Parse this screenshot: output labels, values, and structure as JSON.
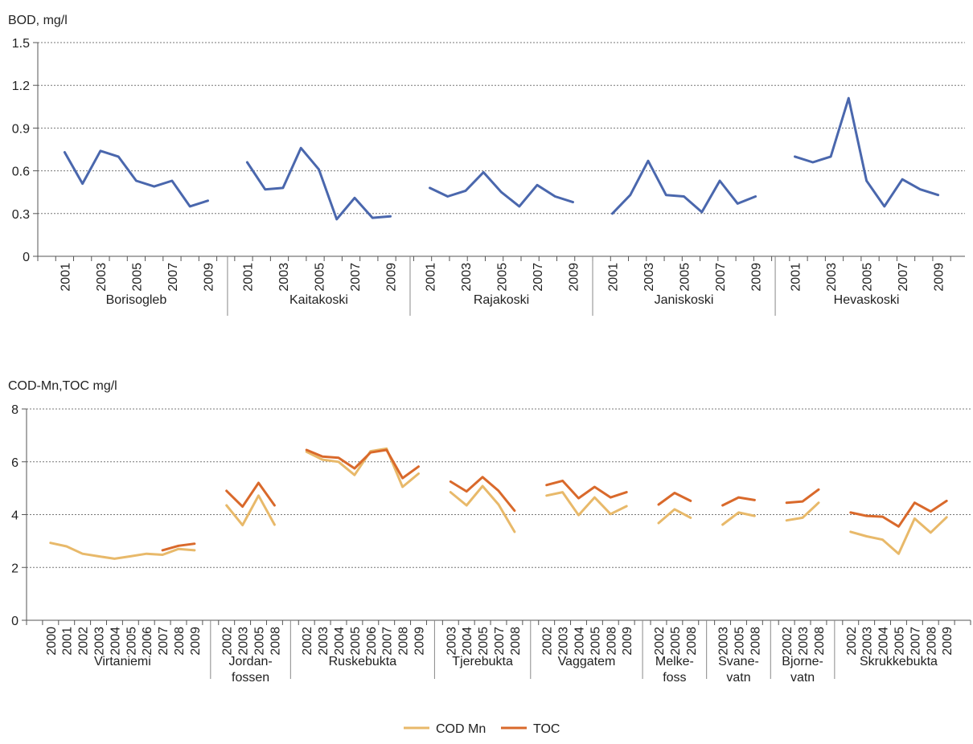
{
  "chart_data": [
    {
      "type": "line",
      "title": "",
      "ylabel": "BOD, mg/l",
      "ylim": [
        0,
        1.5
      ],
      "yticks": [
        "0",
        "0.3",
        "0.6",
        "0.9",
        "1.2",
        "1.5"
      ],
      "grid": true,
      "groups": [
        {
          "name": "Borisogleb",
          "tick_labels": [
            "2001",
            "",
            "2003",
            "",
            "2005",
            "",
            "2007",
            "",
            "2009"
          ],
          "series": [
            {
              "values": [
                0.73,
                0.51,
                0.74,
                0.7,
                0.53,
                0.49,
                0.53,
                0.35,
                0.39
              ]
            }
          ]
        },
        {
          "name": "Kaitakoski",
          "tick_labels": [
            "2001",
            "",
            "2003",
            "",
            "2005",
            "",
            "2007",
            "",
            "2009"
          ],
          "series": [
            {
              "values": [
                0.66,
                0.47,
                0.48,
                0.76,
                0.61,
                0.26,
                0.41,
                0.27,
                0.28
              ]
            }
          ]
        },
        {
          "name": "Rajakoski",
          "tick_labels": [
            "2001",
            "",
            "2003",
            "",
            "2005",
            "",
            "2007",
            "",
            "2009"
          ],
          "series": [
            {
              "values": [
                0.48,
                0.42,
                0.46,
                0.59,
                0.45,
                0.35,
                0.5,
                0.42,
                0.38
              ]
            }
          ]
        },
        {
          "name": "Janiskoski",
          "tick_labels": [
            "2001",
            "",
            "2003",
            "",
            "2005",
            "",
            "2007",
            "",
            "2009"
          ],
          "series": [
            {
              "values": [
                0.3,
                0.43,
                0.67,
                0.43,
                0.42,
                0.31,
                0.53,
                0.37,
                0.42
              ]
            }
          ]
        },
        {
          "name": "Hevaskoski",
          "tick_labels": [
            "2001",
            "",
            "2003",
            "",
            "2005",
            "",
            "2007",
            "",
            "2009"
          ],
          "series": [
            {
              "values": [
                0.7,
                0.66,
                0.7,
                1.11,
                0.53,
                0.35,
                0.54,
                0.47,
                0.43
              ]
            }
          ]
        }
      ]
    },
    {
      "type": "line",
      "title": "",
      "ylabel": "COD-Mn,TOC mg/l",
      "ylim": [
        0,
        8
      ],
      "yticks": [
        "0",
        "2",
        "4",
        "6",
        "8"
      ],
      "grid": true,
      "legend": {
        "position": "bottom",
        "items": [
          {
            "name": "COD Mn",
            "color": "#e8b96a"
          },
          {
            "name": "TOC",
            "color": "#d9692b"
          }
        ]
      },
      "groups": [
        {
          "name": "Virtaniemi",
          "tick_labels": [
            "2000",
            "2001",
            "2002",
            "2003",
            "2004",
            "2005",
            "2006",
            "2007",
            "2008",
            "2009"
          ],
          "series": [
            {
              "name": "COD Mn",
              "values": [
                2.93,
                2.8,
                2.52,
                2.42,
                2.33,
                2.42,
                2.52,
                2.48,
                2.7,
                2.65
              ]
            },
            {
              "name": "TOC",
              "values": [
                null,
                null,
                null,
                null,
                null,
                null,
                null,
                2.65,
                2.82,
                2.9
              ]
            }
          ]
        },
        {
          "name": "Jordan-\nfossen",
          "tick_labels": [
            "2002",
            "2003",
            "2005",
            "2008"
          ],
          "series": [
            {
              "name": "COD Mn",
              "values": [
                4.35,
                3.6,
                4.72,
                3.62
              ]
            },
            {
              "name": "TOC",
              "values": [
                4.9,
                4.3,
                5.2,
                4.35
              ]
            }
          ]
        },
        {
          "name": "Ruskebukta",
          "tick_labels": [
            "2002",
            "2003",
            "2004",
            "2005",
            "2006",
            "2007",
            "2008",
            "2009"
          ],
          "series": [
            {
              "name": "COD Mn",
              "values": [
                6.38,
                6.08,
                6.0,
                5.5,
                6.4,
                6.5,
                5.05,
                5.55
              ]
            },
            {
              "name": "TOC",
              "values": [
                6.45,
                6.2,
                6.15,
                5.75,
                6.35,
                6.45,
                5.38,
                5.82
              ]
            }
          ]
        },
        {
          "name": "Tjerebukta",
          "tick_labels": [
            "2003",
            "2004",
            "2005",
            "2007",
            "2008"
          ],
          "series": [
            {
              "name": "COD Mn",
              "values": [
                4.85,
                4.35,
                5.08,
                4.38,
                3.35
              ]
            },
            {
              "name": "TOC",
              "values": [
                5.25,
                4.88,
                5.42,
                4.9,
                4.15
              ]
            }
          ]
        },
        {
          "name": "Vaggatem",
          "tick_labels": [
            "2002",
            "2003",
            "2004",
            "2005",
            "2008",
            "2009"
          ],
          "series": [
            {
              "name": "COD Mn",
              "values": [
                4.72,
                4.85,
                3.98,
                4.65,
                4.02,
                4.32
              ]
            },
            {
              "name": "TOC",
              "values": [
                5.12,
                5.28,
                4.62,
                5.05,
                4.65,
                4.85
              ]
            }
          ]
        },
        {
          "name": "Melke-\nfoss",
          "tick_labels": [
            "2002",
            "2005",
            "2008"
          ],
          "series": [
            {
              "name": "COD Mn",
              "values": [
                3.68,
                4.2,
                3.88
              ]
            },
            {
              "name": "TOC",
              "values": [
                4.38,
                4.82,
                4.52
              ]
            }
          ]
        },
        {
          "name": "Svane-\nvatn",
          "tick_labels": [
            "2003",
            "2005",
            "2008"
          ],
          "series": [
            {
              "name": "COD Mn",
              "values": [
                3.62,
                4.08,
                3.95
              ]
            },
            {
              "name": "TOC",
              "values": [
                4.35,
                4.65,
                4.55
              ]
            }
          ]
        },
        {
          "name": "Bjorne-\nvatn",
          "tick_labels": [
            "2002",
            "2003",
            "2008"
          ],
          "series": [
            {
              "name": "COD Mn",
              "values": [
                3.78,
                3.88,
                4.45
              ]
            },
            {
              "name": "TOC",
              "values": [
                4.45,
                4.5,
                4.95
              ]
            }
          ]
        },
        {
          "name": "Skrukkebukta",
          "tick_labels": [
            "2002",
            "2003",
            "2004",
            "2005",
            "2007",
            "2008",
            "2009"
          ],
          "series": [
            {
              "name": "COD Mn",
              "values": [
                3.35,
                3.18,
                3.05,
                2.52,
                3.85,
                3.32,
                3.9
              ]
            },
            {
              "name": "TOC",
              "values": [
                4.08,
                3.95,
                3.92,
                3.55,
                4.45,
                4.12,
                4.52
              ]
            }
          ]
        }
      ]
    }
  ]
}
